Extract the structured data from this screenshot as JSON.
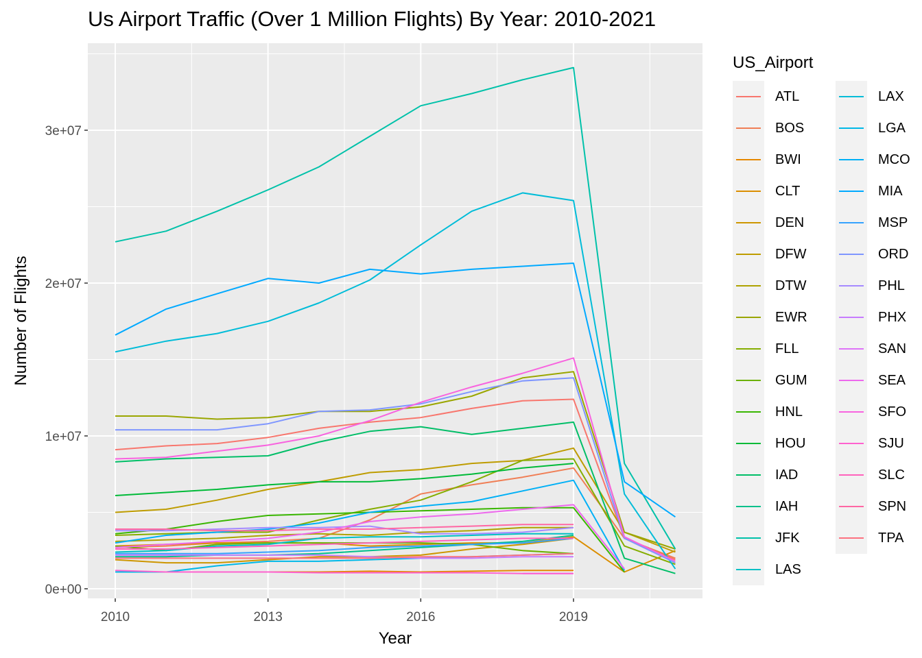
{
  "chart_data": {
    "type": "line",
    "title": "Us Airport Traffic (Over 1 Million Flights) By Year: 2010-2021",
    "xlabel": "Year",
    "ylabel": "Number of Flights",
    "x": [
      2010,
      2011,
      2012,
      2013,
      2014,
      2015,
      2016,
      2017,
      2018,
      2019,
      2020,
      2021
    ],
    "xlim": [
      2009.6,
      2021.4
    ],
    "ylim": [
      -500000,
      35500000
    ],
    "x_ticks": [
      2010,
      2013,
      2016,
      2019
    ],
    "x_tick_labels": [
      "2010",
      "2013",
      "2016",
      "2019"
    ],
    "y_ticks": [
      0,
      10000000,
      20000000,
      30000000
    ],
    "y_tick_labels": [
      "0e+00",
      "1e+07",
      "2e+07",
      "3e+07"
    ],
    "grid": true,
    "legend_title": "US_Airport",
    "legend_position": "right",
    "series": [
      {
        "name": "ATL",
        "color": "#F8766D",
        "values": [
          9100000,
          9350000,
          9500000,
          9900000,
          10500000,
          10900000,
          11200000,
          11800000,
          12300000,
          12400000,
          3300000,
          1900000
        ]
      },
      {
        "name": "BOS",
        "color": "#F07E55",
        "values": [
          2700000,
          2800000,
          3000000,
          3100000,
          3300000,
          4500000,
          6200000,
          6800000,
          7300000,
          7900000,
          3300000,
          2000000
        ]
      },
      {
        "name": "BWI",
        "color": "#E58700",
        "values": [
          1100000,
          1100000,
          1100000,
          1100000,
          1100000,
          1150000,
          1100000,
          1150000,
          1200000,
          1200000,
          null,
          null
        ]
      },
      {
        "name": "CLT",
        "color": "#DB8E00",
        "values": [
          2800000,
          2900000,
          3000000,
          3000000,
          3000000,
          2800000,
          2900000,
          3000000,
          3000000,
          3400000,
          1100000,
          2500000
        ]
      },
      {
        "name": "DEN",
        "color": "#CD9600",
        "values": [
          1900000,
          1700000,
          1700000,
          1900000,
          2100000,
          2100000,
          2200000,
          2600000,
          2900000,
          3300000,
          null,
          null
        ]
      },
      {
        "name": "DFW",
        "color": "#BE9C00",
        "values": [
          5000000,
          5200000,
          5800000,
          6500000,
          7000000,
          7600000,
          7800000,
          8200000,
          8400000,
          9200000,
          3700000,
          2400000
        ]
      },
      {
        "name": "DTW",
        "color": "#AEA200",
        "values": [
          3100000,
          3200000,
          3300000,
          3500000,
          3600000,
          3500000,
          3700000,
          3800000,
          4000000,
          4000000,
          null,
          null
        ]
      },
      {
        "name": "EWR",
        "color": "#9AA600",
        "values": [
          11300000,
          11300000,
          11100000,
          11200000,
          11600000,
          11600000,
          11900000,
          12600000,
          13800000,
          14200000,
          3700000,
          2600000
        ]
      },
      {
        "name": "FLL",
        "color": "#85AD00",
        "values": [
          3500000,
          3600000,
          3700000,
          3700000,
          4500000,
          5200000,
          5800000,
          7000000,
          8400000,
          8500000,
          2800000,
          1600000
        ]
      },
      {
        "name": "GUM",
        "color": "#6BB100",
        "values": [
          2800000,
          2500000,
          2900000,
          3000000,
          3000000,
          3000000,
          3000000,
          2900000,
          2500000,
          2300000,
          null,
          null
        ]
      },
      {
        "name": "HNL",
        "color": "#39B600",
        "values": [
          3600000,
          3900000,
          4400000,
          4800000,
          4900000,
          5000000,
          5100000,
          5200000,
          5300000,
          5300000,
          1100000,
          null
        ]
      },
      {
        "name": "HOU",
        "color": "#00BA38",
        "values": [
          6100000,
          6300000,
          6500000,
          6800000,
          7000000,
          7000000,
          7200000,
          7500000,
          7900000,
          8200000,
          null,
          null
        ]
      },
      {
        "name": "IAD",
        "color": "#00BE67",
        "values": [
          8300000,
          8500000,
          8600000,
          8700000,
          9600000,
          10300000,
          10600000,
          10100000,
          10500000,
          10900000,
          2000000,
          1000000
        ]
      },
      {
        "name": "IAH",
        "color": "#00C08B",
        "values": [
          2100000,
          2100000,
          2200000,
          2200000,
          2300000,
          2500000,
          2700000,
          2900000,
          3100000,
          3500000,
          null,
          null
        ]
      },
      {
        "name": "JFK",
        "color": "#00C1A9",
        "values": [
          22700000,
          23400000,
          24700000,
          26100000,
          27600000,
          29600000,
          31600000,
          32400000,
          33300000,
          34100000,
          8200000,
          2600000
        ]
      },
      {
        "name": "LAS",
        "color": "#00BFC4",
        "values": [
          2400000,
          2500000,
          2800000,
          2900000,
          3300000,
          3400000,
          3400000,
          3500000,
          3600000,
          3600000,
          null,
          null
        ]
      },
      {
        "name": "LAX",
        "color": "#00BCD8",
        "values": [
          15500000,
          16200000,
          16700000,
          17500000,
          18700000,
          20200000,
          22500000,
          24700000,
          25900000,
          25400000,
          6200000,
          1300000
        ]
      },
      {
        "name": "LGA",
        "color": "#00B8E7",
        "values": [
          1100000,
          1100000,
          1500000,
          1800000,
          1800000,
          1900000,
          2000000,
          2100000,
          2200000,
          2300000,
          null,
          null
        ]
      },
      {
        "name": "MCO",
        "color": "#00B0F6",
        "values": [
          3000000,
          3500000,
          3700000,
          3900000,
          4300000,
          5000000,
          5400000,
          5700000,
          6400000,
          7100000,
          1200000,
          null
        ]
      },
      {
        "name": "MIA",
        "color": "#00A9FF",
        "values": [
          16600000,
          18300000,
          19300000,
          20300000,
          20000000,
          20900000,
          20600000,
          20900000,
          21100000,
          21300000,
          7000000,
          4700000
        ]
      },
      {
        "name": "MSP",
        "color": "#35A2FF",
        "values": [
          2300000,
          2300000,
          2300000,
          2400000,
          2500000,
          2700000,
          2800000,
          2900000,
          3000000,
          3300000,
          null,
          null
        ]
      },
      {
        "name": "ORD",
        "color": "#7F96FF",
        "values": [
          10400000,
          10400000,
          10400000,
          10800000,
          11600000,
          11700000,
          12100000,
          12900000,
          13600000,
          13800000,
          3300000,
          1700000
        ]
      },
      {
        "name": "PHL",
        "color": "#A58AFF",
        "values": [
          3800000,
          3800000,
          3900000,
          4000000,
          4000000,
          4100000,
          3600000,
          3600000,
          3700000,
          4000000,
          null,
          null
        ]
      },
      {
        "name": "PHX",
        "color": "#C77CFF",
        "values": [
          2200000,
          2200000,
          2200000,
          2200000,
          2200000,
          2100000,
          2000000,
          2000000,
          2100000,
          2100000,
          null,
          null
        ]
      },
      {
        "name": "SAN",
        "color": "#DE73F8",
        "values": [
          null,
          null,
          null,
          null,
          null,
          null,
          null,
          null,
          1000000,
          1000000,
          null,
          null
        ]
      },
      {
        "name": "SEA",
        "color": "#ED68ED",
        "values": [
          2700000,
          2900000,
          3100000,
          3300000,
          3700000,
          4400000,
          4700000,
          4900000,
          5200000,
          5500000,
          1300000,
          null
        ]
      },
      {
        "name": "SFO",
        "color": "#F863DF",
        "values": [
          8500000,
          8600000,
          9000000,
          9400000,
          10000000,
          11000000,
          12200000,
          13200000,
          14100000,
          15100000,
          3400000,
          1800000
        ]
      },
      {
        "name": "SJU",
        "color": "#FE61CF",
        "values": [
          1200000,
          1100000,
          1100000,
          1100000,
          1050000,
          1050000,
          1050000,
          1050000,
          1000000,
          1000000,
          null,
          null
        ]
      },
      {
        "name": "SLC",
        "color": "#FF62BC",
        "values": [
          2600000,
          2600000,
          2700000,
          2800000,
          2900000,
          3000000,
          3100000,
          3200000,
          3300000,
          3300000,
          null,
          null
        ]
      },
      {
        "name": "SPN",
        "color": "#FF67A4",
        "values": [
          3900000,
          3900000,
          3800000,
          3800000,
          3900000,
          3900000,
          4000000,
          4100000,
          4200000,
          4200000,
          null,
          null
        ]
      },
      {
        "name": "TPA",
        "color": "#FC717F",
        "values": [
          2000000,
          2000000,
          2000000,
          2000000,
          2000000,
          2000000,
          2100000,
          2100000,
          2200000,
          2300000,
          null,
          null
        ]
      }
    ]
  }
}
